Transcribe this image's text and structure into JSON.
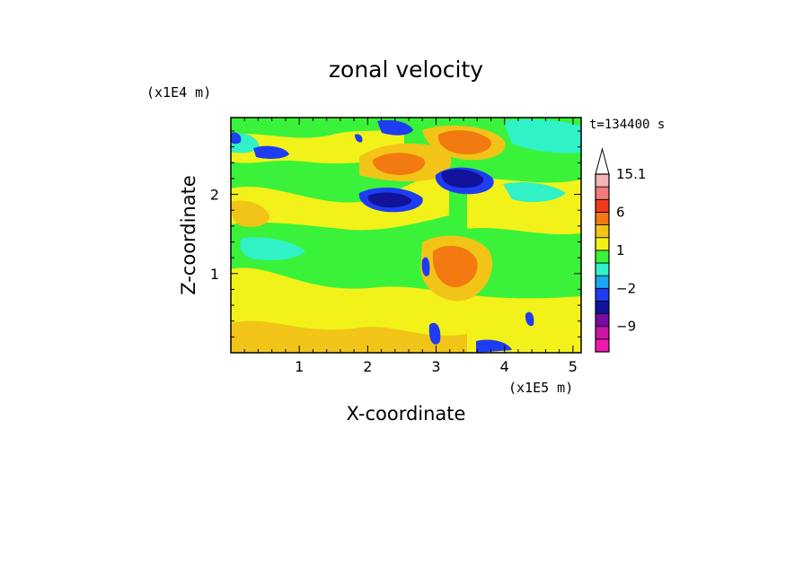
{
  "chart_data": {
    "type": "heatmap",
    "title": "zonal velocity",
    "xlabel": "X-coordinate",
    "ylabel": "Z-coordinate",
    "x_unit": "(x1E5 m)",
    "y_unit": "(x1E4 m)",
    "time_label": "t=134400 s",
    "xlim": [
      0,
      5.12
    ],
    "ylim": [
      0,
      2.97
    ],
    "x_ticks": [
      1,
      2,
      3,
      4,
      5
    ],
    "x_tick_labels": [
      "1",
      "2",
      "3",
      "4",
      "5"
    ],
    "y_ticks": [
      1,
      2
    ],
    "y_tick_labels": [
      "1",
      "2"
    ],
    "colorbar": {
      "bins": [
        {
          "range": "< -12",
          "color": "#ee1ab0"
        },
        {
          "range": "-12 to -9",
          "color": "#cc14a6"
        },
        {
          "range": "-9 to -6",
          "color": "#7a0aa0"
        },
        {
          "range": "-6 to -4",
          "color": "#12129a"
        },
        {
          "range": "-4 to -2",
          "color": "#1e3cf2"
        },
        {
          "range": "-2 to -1",
          "color": "#1aa6f0"
        },
        {
          "range": "-1 to 0",
          "color": "#30f2c6"
        },
        {
          "range": "0 to 1",
          "color": "#3af23a"
        },
        {
          "range": "1 to 2",
          "color": "#f2f21a"
        },
        {
          "range": "2 to 4",
          "color": "#f2c418"
        },
        {
          "range": "4 to 6",
          "color": "#f27a10"
        },
        {
          "range": "6 to 9",
          "color": "#f23a1a"
        },
        {
          "range": "9 to 12",
          "color": "#f27a7a"
        },
        {
          "range": "12 to 15.1",
          "color": "#f2b4b4"
        },
        {
          "range": "> 15.1",
          "color": "#ffffff"
        }
      ],
      "labels": [
        "15.1",
        "6",
        "1",
        "-2",
        "-9"
      ]
    }
  }
}
